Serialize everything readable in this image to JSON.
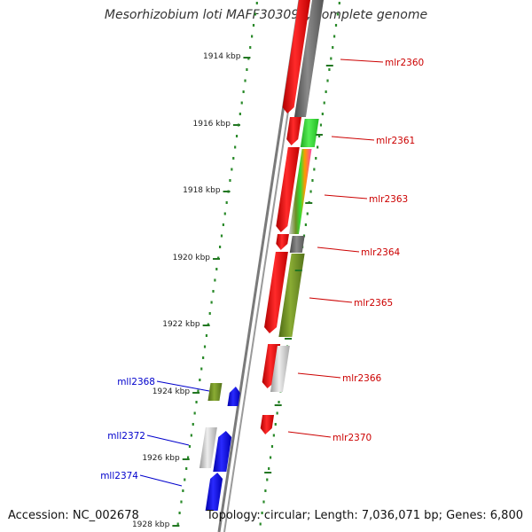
{
  "title": "Mesorhizobium loti MAFF303099, complete genome",
  "footer": {
    "accession": "Accession: NC_002678",
    "summary": "Topology: circular; Length: 7,036,071 bp; Genes: 6,800"
  },
  "colors": {
    "forward_label": "#cc0000",
    "reverse_label": "#0000cc",
    "backbone": "#808080",
    "kbp_tick": "#227722",
    "red_gene": "#ff0000",
    "gray_gene": "#6e6e6e",
    "green_gene": "#33dd33",
    "olive_gene": "#6b8e23",
    "light_gray_gene": "#cccccc",
    "blue_gene": "#0000ee",
    "pink_gene": "#ff44aa",
    "orange_gene": "#ff9900"
  },
  "kbp_labels": [
    "1914 kbp",
    "1916 kbp",
    "1918 kbp",
    "1920 kbp",
    "1922 kbp",
    "1924 kbp",
    "1926 kbp",
    "1928 kbp"
  ],
  "gene_labels": [
    {
      "name": "mlr2360",
      "strand": "forward"
    },
    {
      "name": "mlr2361",
      "strand": "forward"
    },
    {
      "name": "mlr2363",
      "strand": "forward"
    },
    {
      "name": "mlr2364",
      "strand": "forward"
    },
    {
      "name": "mlr2365",
      "strand": "forward"
    },
    {
      "name": "mlr2366",
      "strand": "forward"
    },
    {
      "name": "mlr2370",
      "strand": "forward"
    },
    {
      "name": "mll2368",
      "strand": "reverse"
    },
    {
      "name": "mll2372",
      "strand": "reverse"
    },
    {
      "name": "mll2374",
      "strand": "reverse"
    }
  ]
}
